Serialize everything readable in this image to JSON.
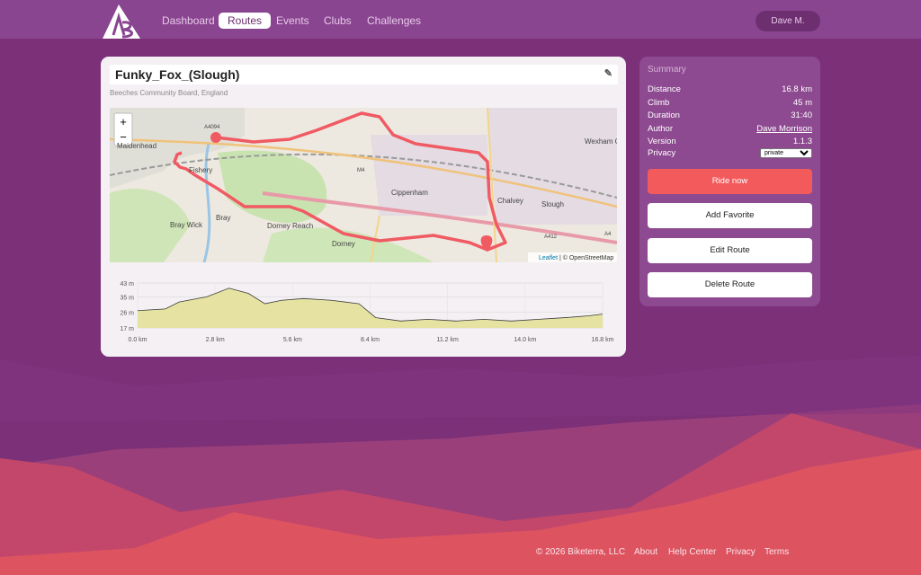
{
  "nav": {
    "links": [
      "Dashboard",
      "Routes",
      "Events",
      "Clubs",
      "Challenges"
    ],
    "user": "Dave M."
  },
  "route": {
    "title": "Funky_Fox_(Slough)",
    "location": "Beeches Community Board, England"
  },
  "map": {
    "zoom_in": "+",
    "zoom_out": "−",
    "attribution_link": "Leaflet",
    "attribution_text": "| © OpenStreetMap",
    "labels": [
      "Maidenhead",
      "Fishery",
      "Bray Wick",
      "Bray",
      "Dorney Reach",
      "Dorney",
      "Cippenham",
      "Slough",
      "Wexham Co",
      "Chalvey",
      "A4094",
      "M4",
      "A4",
      "A412"
    ]
  },
  "summary": {
    "title": "Summary",
    "rows": [
      {
        "label": "Distance",
        "value": "16.8 km"
      },
      {
        "label": "Climb",
        "value": "45 m"
      },
      {
        "label": "Duration",
        "value": "31:40"
      },
      {
        "label": "Author",
        "value": "Dave Morrison"
      },
      {
        "label": "Version",
        "value": "1.1.3"
      }
    ],
    "privacy_label": "Privacy",
    "privacy_value": "private"
  },
  "actions": [
    "Ride now",
    "Add Favorite",
    "Edit Route",
    "Delete Route"
  ],
  "chart_data": {
    "type": "area",
    "color": "#e4e199",
    "line_color": "#3a3a3a",
    "x": [
      0,
      1.0,
      1.5,
      2.5,
      3.3,
      4.0,
      4.6,
      5.2,
      6.0,
      7.0,
      8.0,
      8.6,
      9.5,
      10.5,
      11.5,
      12.5,
      13.5,
      14.5,
      15.5,
      16.3,
      16.8
    ],
    "values": [
      27,
      28,
      32,
      35,
      40,
      37,
      31,
      33,
      34,
      33,
      31,
      23,
      21,
      22,
      21,
      22,
      21,
      22,
      23,
      24,
      25
    ],
    "xlim": [
      0,
      16.8
    ],
    "ylim": [
      17,
      43
    ],
    "xticks": [
      {
        "value": 0,
        "label": "0.0 km"
      },
      {
        "value": 2.8,
        "label": "2.8 km"
      },
      {
        "value": 5.6,
        "label": "5.6 km"
      },
      {
        "value": 8.4,
        "label": "8.4 km"
      },
      {
        "value": 11.2,
        "label": "11.2 km"
      },
      {
        "value": 14.0,
        "label": "14.0 km"
      },
      {
        "value": 16.8,
        "label": "16.8 km"
      }
    ],
    "yticks": [
      {
        "value": 17,
        "label": "17 m"
      },
      {
        "value": 26,
        "label": "26 m"
      },
      {
        "value": 35,
        "label": "35 m"
      },
      {
        "value": 43,
        "label": "43 m"
      }
    ],
    "grid": true
  },
  "footer": {
    "copyright": "© 2026 Biketerra, LLC",
    "links": [
      "About",
      "Help Center",
      "Privacy",
      "Terms"
    ]
  }
}
